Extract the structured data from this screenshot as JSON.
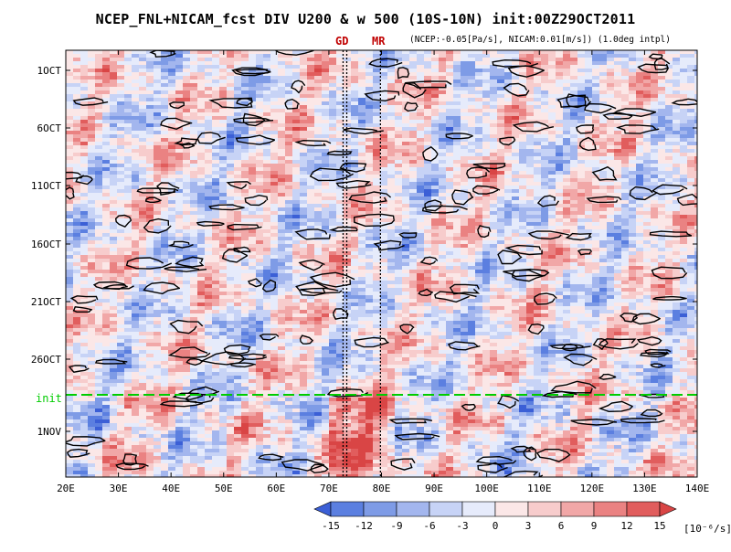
{
  "header": {
    "title": "NCEP_FNL+NICAM_fcst DIV U200 & w 500 (10S-10N) init:00Z29OCT2011",
    "subtitle": "(NCEP:-0.05[Pa/s], NICAM:0.01[m/s]) (1.0deg intpl)"
  },
  "markers": {
    "gd": "GD",
    "mr": "MR",
    "init": "init"
  },
  "colors": {
    "init_line": "#00cc00",
    "marker_text": "#c00000",
    "contour": "#000000",
    "palette": [
      "#3b5fd6",
      "#5b7fe0",
      "#7e9be6",
      "#a3b6ee",
      "#c7d3f6",
      "#e6ebfb",
      "#fbe7e7",
      "#f7cccc",
      "#f1a7a7",
      "#ea8282",
      "#e15d5d",
      "#d94545"
    ]
  },
  "chart_data": {
    "type": "heatmap",
    "title": "NCEP_FNL+NICAM_fcst DIV U200 & w 500 (10S-10N) init:00Z29OCT2011",
    "xlabel": "",
    "ylabel": "",
    "x_axis": {
      "min": 20,
      "max": 140,
      "ticks": [
        "20E",
        "30E",
        "40E",
        "50E",
        "60E",
        "70E",
        "80E",
        "90E",
        "100E",
        "110E",
        "120E",
        "130E",
        "140E"
      ]
    },
    "y_axis": {
      "ticks": [
        "1OCT",
        "6OCT",
        "11OCT",
        "16OCT",
        "21OCT",
        "26OCT",
        "1NOV"
      ],
      "direction": "time increases downward"
    },
    "colorbar": {
      "levels": [
        -15,
        -12,
        -9,
        -6,
        -3,
        0,
        3,
        6,
        9,
        12,
        15
      ],
      "labels": [
        "-15",
        "-12",
        "-9",
        "-6",
        "-3",
        "0",
        "3",
        "6",
        "9",
        "12",
        "15"
      ],
      "unit": "[10⁻⁶/s]"
    },
    "vertical_lines": [
      {
        "label": "GD",
        "x": 72.7,
        "style": "dotted"
      },
      {
        "label": "GD",
        "x": 73.4,
        "style": "dotted"
      },
      {
        "label": "MR",
        "x": 79.8,
        "style": "dotted"
      }
    ],
    "init_line": {
      "label": "init",
      "date": "29OCT2011",
      "style": "dashed"
    }
  }
}
